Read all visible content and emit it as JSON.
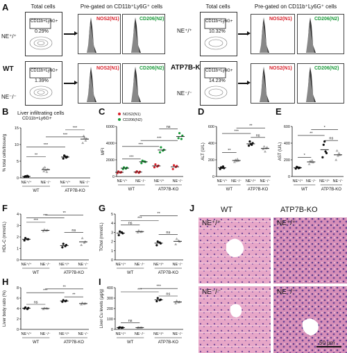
{
  "panelA": {
    "letter": "A",
    "left": {
      "hdr_total": "Total cells",
      "hdr_pregated": "Pre-gated on CD11b⁺Ly6G⁺ cells",
      "genotype": "WT",
      "row1": {
        "label": "NE⁺/⁺",
        "gate": "CD11b+Ly6G+",
        "pct": "0.29%",
        "n1": "NOS2(N1)",
        "n2": "CD206(N2)"
      },
      "row2": {
        "label": "NE⁻/⁻",
        "gate": "CD11b+Ly6G+",
        "pct": "1.39%",
        "n1": "NOS2(N1)",
        "n2": "CD206(N2)"
      }
    },
    "right": {
      "hdr_total": "Total cells",
      "hdr_pregated": "Pre-gated on CD11b⁺Ly6G⁺ cells",
      "genotype": "ATP7B-KO",
      "row1": {
        "label": "NE⁺/⁺",
        "gate": "CD11b+Ly6G+",
        "pct": "10.32%",
        "n1": "NOS2(N1)",
        "n2": "CD206(N2)"
      },
      "row2": {
        "label": "NE⁻/⁻",
        "gate": "CD11b+Ly6G+",
        "pct": "14.23%",
        "n1": "NOS2(N1)",
        "n2": "CD206(N2)"
      }
    }
  },
  "colors": {
    "red": "#d8202a",
    "green": "#1a9a3a",
    "pointgray": "#aaaaaa",
    "pointblack": "#111111"
  },
  "panelB": {
    "letter": "B",
    "title": "Liver infiltrating cells",
    "subtitle": "CD11b+Ly6G+",
    "ylabel": "% total cells/tissue/g"
  },
  "panelC": {
    "letter": "C",
    "ylabel": "MFI",
    "legend1": "NOS2(N1)",
    "legend2": "CD206(N2)"
  },
  "panelD": {
    "letter": "D",
    "ylabel": "ALT (U/L)"
  },
  "panelE": {
    "letter": "E",
    "ylabel": "AST (U/L)"
  },
  "panelF": {
    "letter": "F",
    "ylabel": "HDL-C (mmol/L)"
  },
  "panelG": {
    "letter": "G",
    "ylabel": "TChol (mmol/L)"
  },
  "panelH": {
    "letter": "H",
    "ylabel": "Liver body ratio (%)"
  },
  "panelI": {
    "letter": "I",
    "ylabel": "Liver Cu levels (µg/g)"
  },
  "panelJ": {
    "letter": "J",
    "col1": "WT",
    "col2": "ATP7B-KO",
    "tl": "NE⁺/⁺",
    "tr": "NE⁺/⁺",
    "bl": "NE⁻/⁻",
    "br": "NE⁻/⁻",
    "scale": "50 µm"
  },
  "groups": {
    "wt": "WT",
    "ko": "ATP7B-KO",
    "nepp": "NE⁺/⁺",
    "nemm": "NE⁻/⁻"
  },
  "stats": {
    "ns": "ns",
    "s1": "*",
    "s2": "**",
    "s3": "***"
  },
  "chart_data": [
    {
      "panel": "B",
      "type": "scatter",
      "categories": [
        "WT NE+/+",
        "WT NE-/-",
        "ATP7B-KO NE+/+",
        "ATP7B-KO NE-/-"
      ],
      "values": [
        [
          0.3,
          0.4,
          0.5,
          0.6,
          0.4
        ],
        [
          2,
          2.6,
          3.2,
          1.8,
          2.4,
          2.9
        ],
        [
          5.8,
          6.3,
          6.7,
          6.1,
          6.4
        ],
        [
          10.5,
          11.8,
          12.6,
          11.2,
          12.1
        ]
      ],
      "ylim": [
        0,
        15
      ],
      "yticks": [
        0,
        5,
        10,
        15
      ],
      "sig": [
        [
          "NE+/+ vs NE-/- WT",
          "**"
        ],
        [
          "WT NE+/+ vs KO NE+/+",
          "***"
        ],
        [
          "WT NE-/- vs KO NE-/-",
          "***"
        ],
        [
          "KO NE+/+ vs KO NE-/-",
          "***"
        ]
      ]
    },
    {
      "panel": "C",
      "type": "scatter",
      "categories": [
        "WT NE+/+",
        "WT NE-/-",
        "ATP7B-KO NE+/+",
        "ATP7B-KO NE-/-"
      ],
      "series": [
        {
          "name": "NOS2(N1)",
          "values": [
            [
              420,
              520,
              600,
              480
            ],
            [
              500,
              560,
              620,
              450
            ],
            [
              1100,
              1300,
              1450,
              1200
            ],
            [
              900,
              1250,
              1350,
              1150
            ]
          ]
        },
        {
          "name": "CD206(N2)",
          "values": [
            [
              900,
              1050,
              1100,
              950
            ],
            [
              1600,
              1750,
              1900,
              1800
            ],
            [
              2900,
              3200,
              3500,
              3100
            ],
            [
              4600,
              4900,
              5200,
              4500
            ]
          ]
        }
      ],
      "ylim": [
        0,
        6000
      ],
      "yticks": [
        0,
        2000,
        4000,
        6000
      ]
    },
    {
      "panel": "D",
      "type": "scatter",
      "categories": [
        "WT NE+/+",
        "WT NE-/-",
        "ATP7B-KO NE+/+",
        "ATP7B-KO NE-/-"
      ],
      "values": [
        [
          90,
          100,
          110,
          120,
          105
        ],
        [
          175,
          190,
          200,
          210,
          185
        ],
        [
          370,
          400,
          420,
          380,
          390
        ],
        [
          330,
          350,
          360,
          340,
          300
        ]
      ],
      "ylim": [
        0,
        600
      ],
      "yticks": [
        0,
        200,
        400,
        600
      ]
    },
    {
      "panel": "E",
      "type": "scatter",
      "categories": [
        "WT NE+/+",
        "WT NE-/-",
        "ATP7B-KO NE+/+",
        "ATP7B-KO NE-/-"
      ],
      "values": [
        [
          95,
          105,
          115,
          100,
          110
        ],
        [
          150,
          170,
          185,
          195,
          175
        ],
        [
          230,
          280,
          380,
          300,
          420
        ],
        [
          200,
          260,
          310,
          280,
          250
        ]
      ],
      "ylim": [
        0,
        600
      ],
      "yticks": [
        0,
        200,
        400,
        600
      ]
    },
    {
      "panel": "F",
      "type": "scatter",
      "categories": [
        "WT NE+/+",
        "WT NE-/-",
        "ATP7B-KO NE+/+",
        "ATP7B-KO NE-/-"
      ],
      "values": [
        [
          1.7,
          1.8,
          1.9,
          1.8
        ],
        [
          2.5,
          2.6,
          2.65,
          2.55
        ],
        [
          1.1,
          1.3,
          1.4,
          1.2
        ],
        [
          1.3,
          1.6,
          1.9,
          1.5
        ]
      ],
      "ylim": [
        0,
        4
      ],
      "yticks": [
        0,
        1,
        2,
        3,
        4
      ]
    },
    {
      "panel": "G",
      "type": "scatter",
      "categories": [
        "WT NE+/+",
        "WT NE-/-",
        "ATP7B-KO NE+/+",
        "ATP7B-KO NE-/-"
      ],
      "values": [
        [
          2.7,
          2.9,
          3.1,
          3.0
        ],
        [
          3.0,
          3.1,
          3.2,
          3.05
        ],
        [
          1.6,
          1.8,
          2.0,
          1.9
        ],
        [
          1.7,
          2.0,
          2.3,
          2.1
        ]
      ],
      "ylim": [
        0,
        5
      ],
      "yticks": [
        0,
        1,
        2,
        3,
        4,
        5
      ]
    },
    {
      "panel": "H",
      "type": "scatter",
      "categories": [
        "WT NE+/+",
        "WT NE-/-",
        "ATP7B-KO NE+/+",
        "ATP7B-KO NE-/-"
      ],
      "values": [
        [
          4.0,
          4.1,
          4.2,
          3.9
        ],
        [
          3.9,
          4.0,
          4.1,
          4.05
        ],
        [
          5.3,
          5.5,
          5.6,
          5.4
        ],
        [
          4.8,
          5.0,
          5.1,
          4.9
        ]
      ],
      "ylim": [
        0,
        8
      ],
      "yticks": [
        0,
        2,
        4,
        6,
        8
      ]
    },
    {
      "panel": "I",
      "type": "scatter",
      "categories": [
        "WT NE+/+",
        "WT NE-/-",
        "ATP7B-KO NE+/+",
        "ATP7B-KO NE-/-"
      ],
      "values": [
        [
          15,
          17,
          19,
          16
        ],
        [
          16,
          18,
          19,
          17
        ],
        [
          270,
          285,
          300,
          280
        ],
        [
          250,
          265,
          275,
          260
        ]
      ],
      "ylim": [
        0,
        400
      ],
      "yticks": [
        0,
        100,
        200,
        300,
        400
      ]
    }
  ]
}
